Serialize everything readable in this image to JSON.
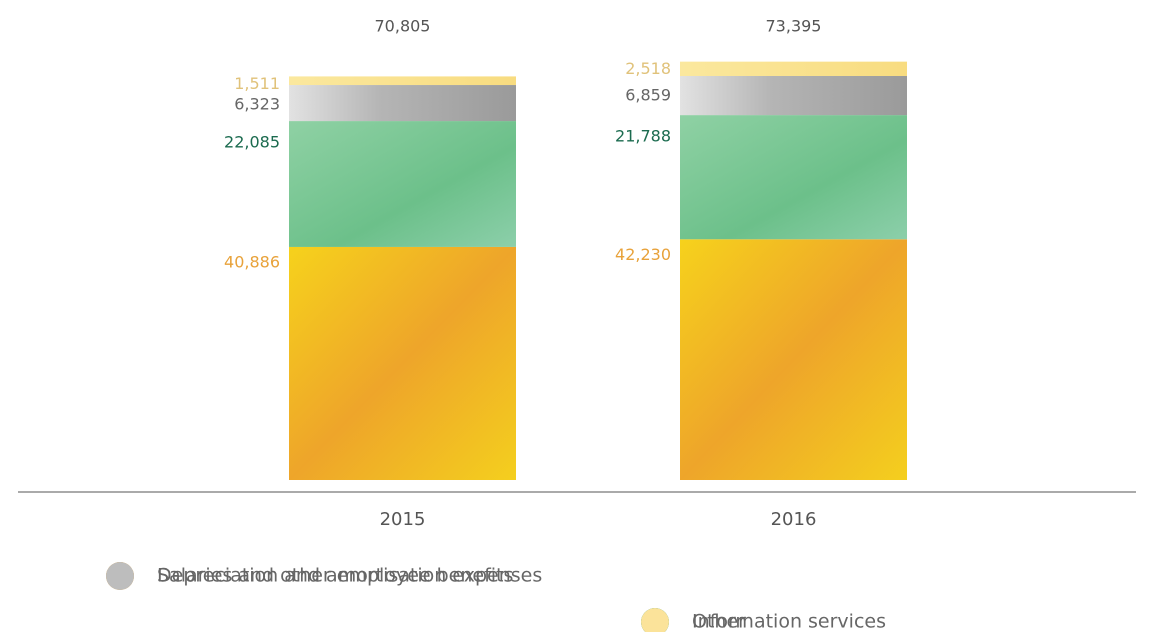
{
  "chart_data": {
    "type": "stacked-bar",
    "categories": [
      "2015",
      "2016"
    ],
    "series": [
      {
        "name": "Salaries and other employee benefits",
        "color": "#f0a020",
        "values": [
          40886,
          42230
        ],
        "value_labels": [
          "40,886",
          "42,230"
        ]
      },
      {
        "name": "Other",
        "color": "#00805a",
        "values": [
          22085,
          21788
        ],
        "value_labels": [
          "22,085",
          "21,788"
        ]
      },
      {
        "name": "Depreciation and amortisation expenses",
        "color": "#bdbdbd",
        "values": [
          6323,
          6859
        ],
        "value_labels": [
          "6,323",
          "6,859"
        ]
      },
      {
        "name": "Information services",
        "color": "#fbe39a",
        "values": [
          1511,
          2518
        ],
        "value_labels": [
          "1,511",
          "2,518"
        ]
      }
    ],
    "totals": {
      "values": [
        70805,
        73395
      ],
      "value_labels": [
        "70,805",
        "73,395"
      ]
    }
  }
}
